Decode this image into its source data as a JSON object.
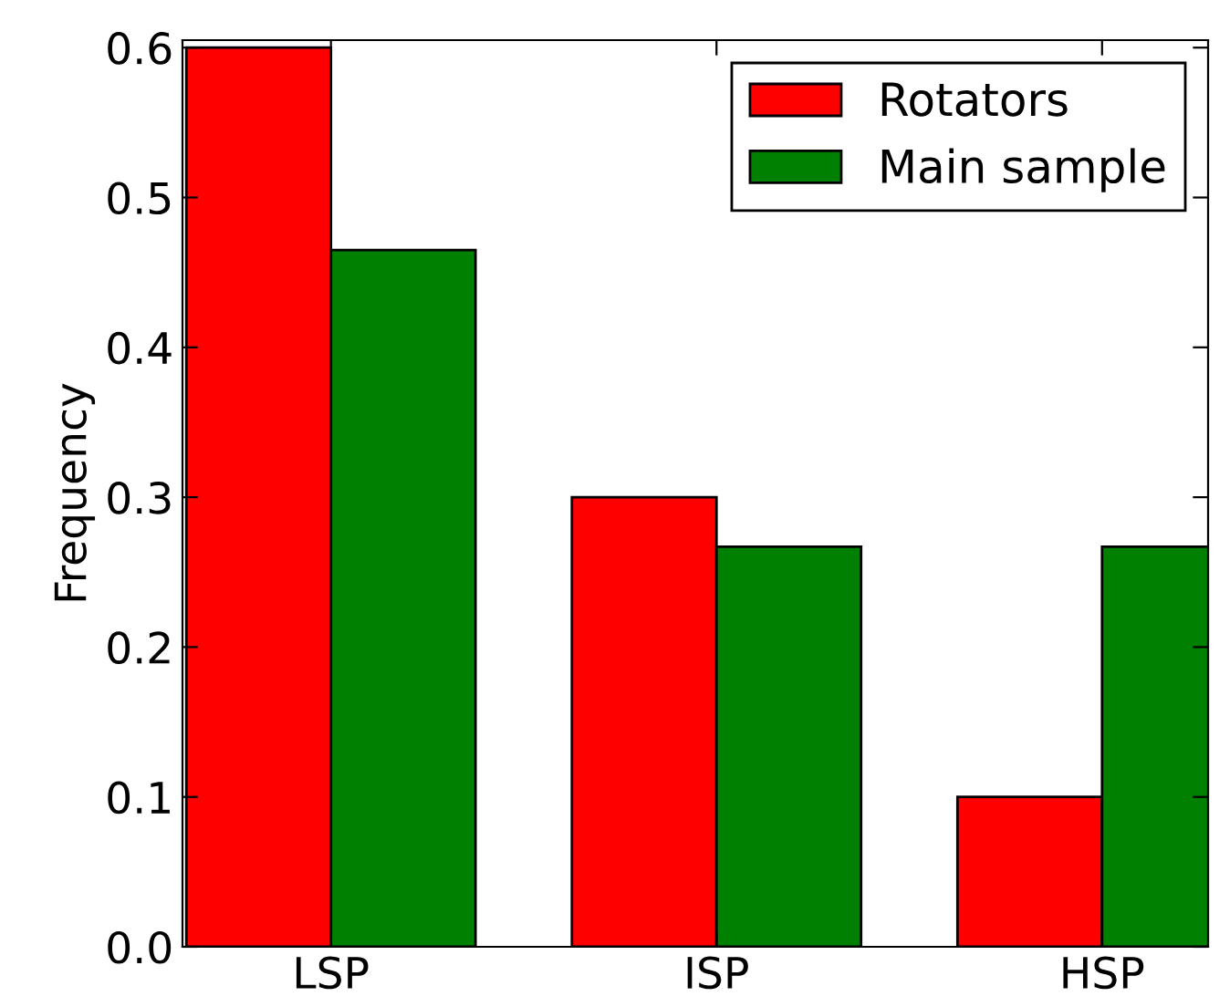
{
  "chart_data": {
    "type": "bar",
    "ylabel": "Frequency",
    "categories": [
      "LSP",
      "ISP",
      "HSP"
    ],
    "series": [
      {
        "name": "Rotators",
        "color": "#ff0000",
        "values": [
          0.6,
          0.3,
          0.1
        ]
      },
      {
        "name": "Main sample",
        "color": "#008000",
        "values": [
          0.465,
          0.267,
          0.267
        ]
      }
    ],
    "ylim": [
      0,
      0.605
    ],
    "yticks": [
      {
        "value": 0,
        "label": "0.0"
      },
      0.1,
      0.2,
      0.3,
      0.4,
      0.5,
      0.6
    ],
    "grid": false,
    "legend": "top right"
  }
}
